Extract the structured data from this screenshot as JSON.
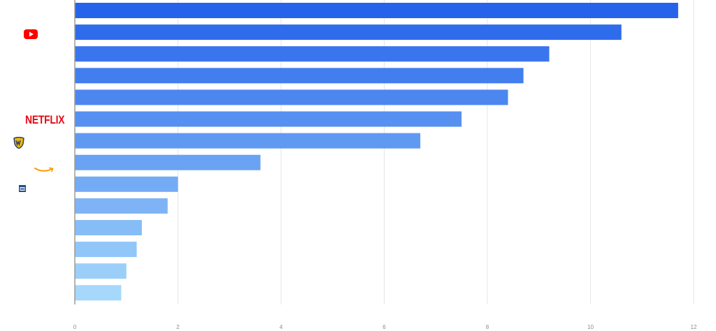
{
  "chart_data": {
    "type": "bar",
    "orientation": "horizontal",
    "categories": [
      "",
      "YouTube",
      "",
      "",
      "",
      "Netflix",
      "Warner Bros.",
      "Amazon",
      "",
      "",
      "",
      "",
      "",
      ""
    ],
    "values": [
      11.7,
      10.6,
      9.2,
      8.7,
      8.4,
      7.5,
      6.7,
      3.6,
      2.0,
      1.8,
      1.3,
      1.2,
      1.0,
      0.9
    ],
    "xlim": [
      0,
      12
    ],
    "xticks": [
      "0",
      "2",
      "4",
      "6",
      "8",
      "10",
      "12"
    ],
    "grid": "vertical",
    "legend": "none",
    "colors": {
      "bar_start": "#2563eb",
      "bar_end": "#a5d8fb",
      "grid": "#e6e6e6",
      "axis": "#9b9b9b",
      "tick_text": "#8a8a8a"
    }
  },
  "logos": {
    "youtube": {
      "icon": "youtube-logo-icon",
      "color": "#ff0000"
    },
    "netflix": {
      "text": "NETFLIX",
      "color": "#e50914"
    },
    "warner": {
      "icon": "warner-bros-shield-icon",
      "color": "#1f4e9a"
    },
    "amazon": {
      "icon": "amazon-smile-icon",
      "color": "#ff9900"
    },
    "small_box": {
      "icon": "blue-box-logo-icon",
      "color": "#1f4e8c"
    }
  }
}
